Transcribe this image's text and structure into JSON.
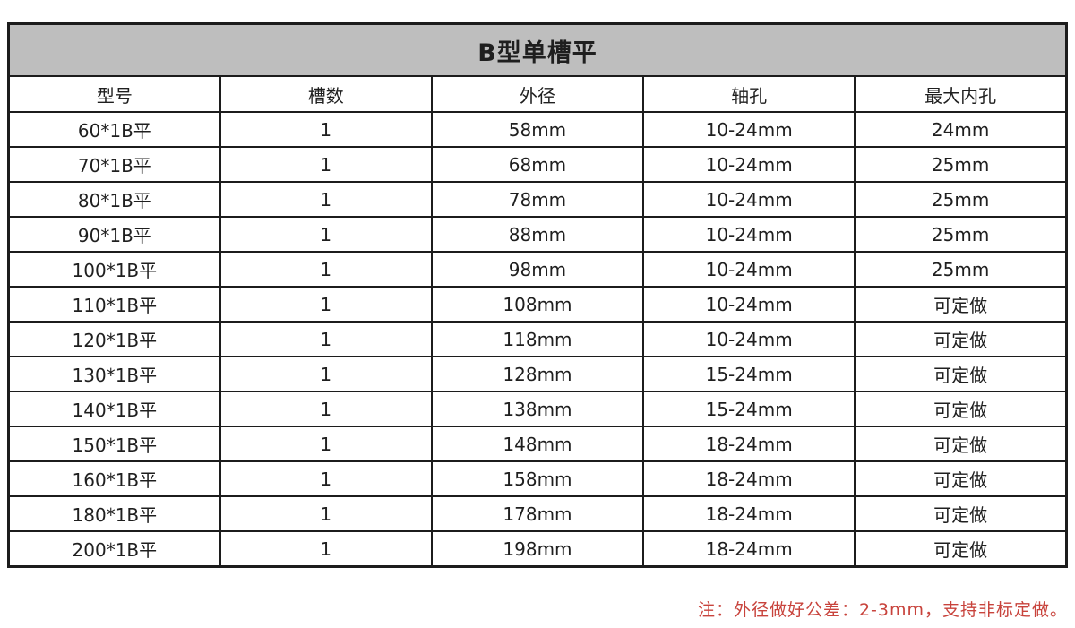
{
  "table": {
    "title": "B型单槽平",
    "columns": [
      "型号",
      "槽数",
      "外径",
      "轴孔",
      "最大内孔"
    ],
    "rows": [
      [
        "60*1B平",
        "1",
        "58mm",
        "10-24mm",
        "24mm"
      ],
      [
        "70*1B平",
        "1",
        "68mm",
        "10-24mm",
        "25mm"
      ],
      [
        "80*1B平",
        "1",
        "78mm",
        "10-24mm",
        "25mm"
      ],
      [
        "90*1B平",
        "1",
        "88mm",
        "10-24mm",
        "25mm"
      ],
      [
        "100*1B平",
        "1",
        "98mm",
        "10-24mm",
        "25mm"
      ],
      [
        "110*1B平",
        "1",
        "108mm",
        "10-24mm",
        "可定做"
      ],
      [
        "120*1B平",
        "1",
        "118mm",
        "10-24mm",
        "可定做"
      ],
      [
        "130*1B平",
        "1",
        "128mm",
        "15-24mm",
        "可定做"
      ],
      [
        "140*1B平",
        "1",
        "138mm",
        "15-24mm",
        "可定做"
      ],
      [
        "150*1B平",
        "1",
        "148mm",
        "18-24mm",
        "可定做"
      ],
      [
        "160*1B平",
        "1",
        "158mm",
        "18-24mm",
        "可定做"
      ],
      [
        "180*1B平",
        "1",
        "178mm",
        "18-24mm",
        "可定做"
      ],
      [
        "200*1B平",
        "1",
        "198mm",
        "18-24mm",
        "可定做"
      ]
    ],
    "note": "注：外径做好公差：2-3mm，支持非标定做。"
  },
  "colors": {
    "title_bg": "#bebebe",
    "border": "#1c1c1c",
    "text": "#1f1f1f",
    "note_red": "#c8433c",
    "background": "#ffffff"
  }
}
